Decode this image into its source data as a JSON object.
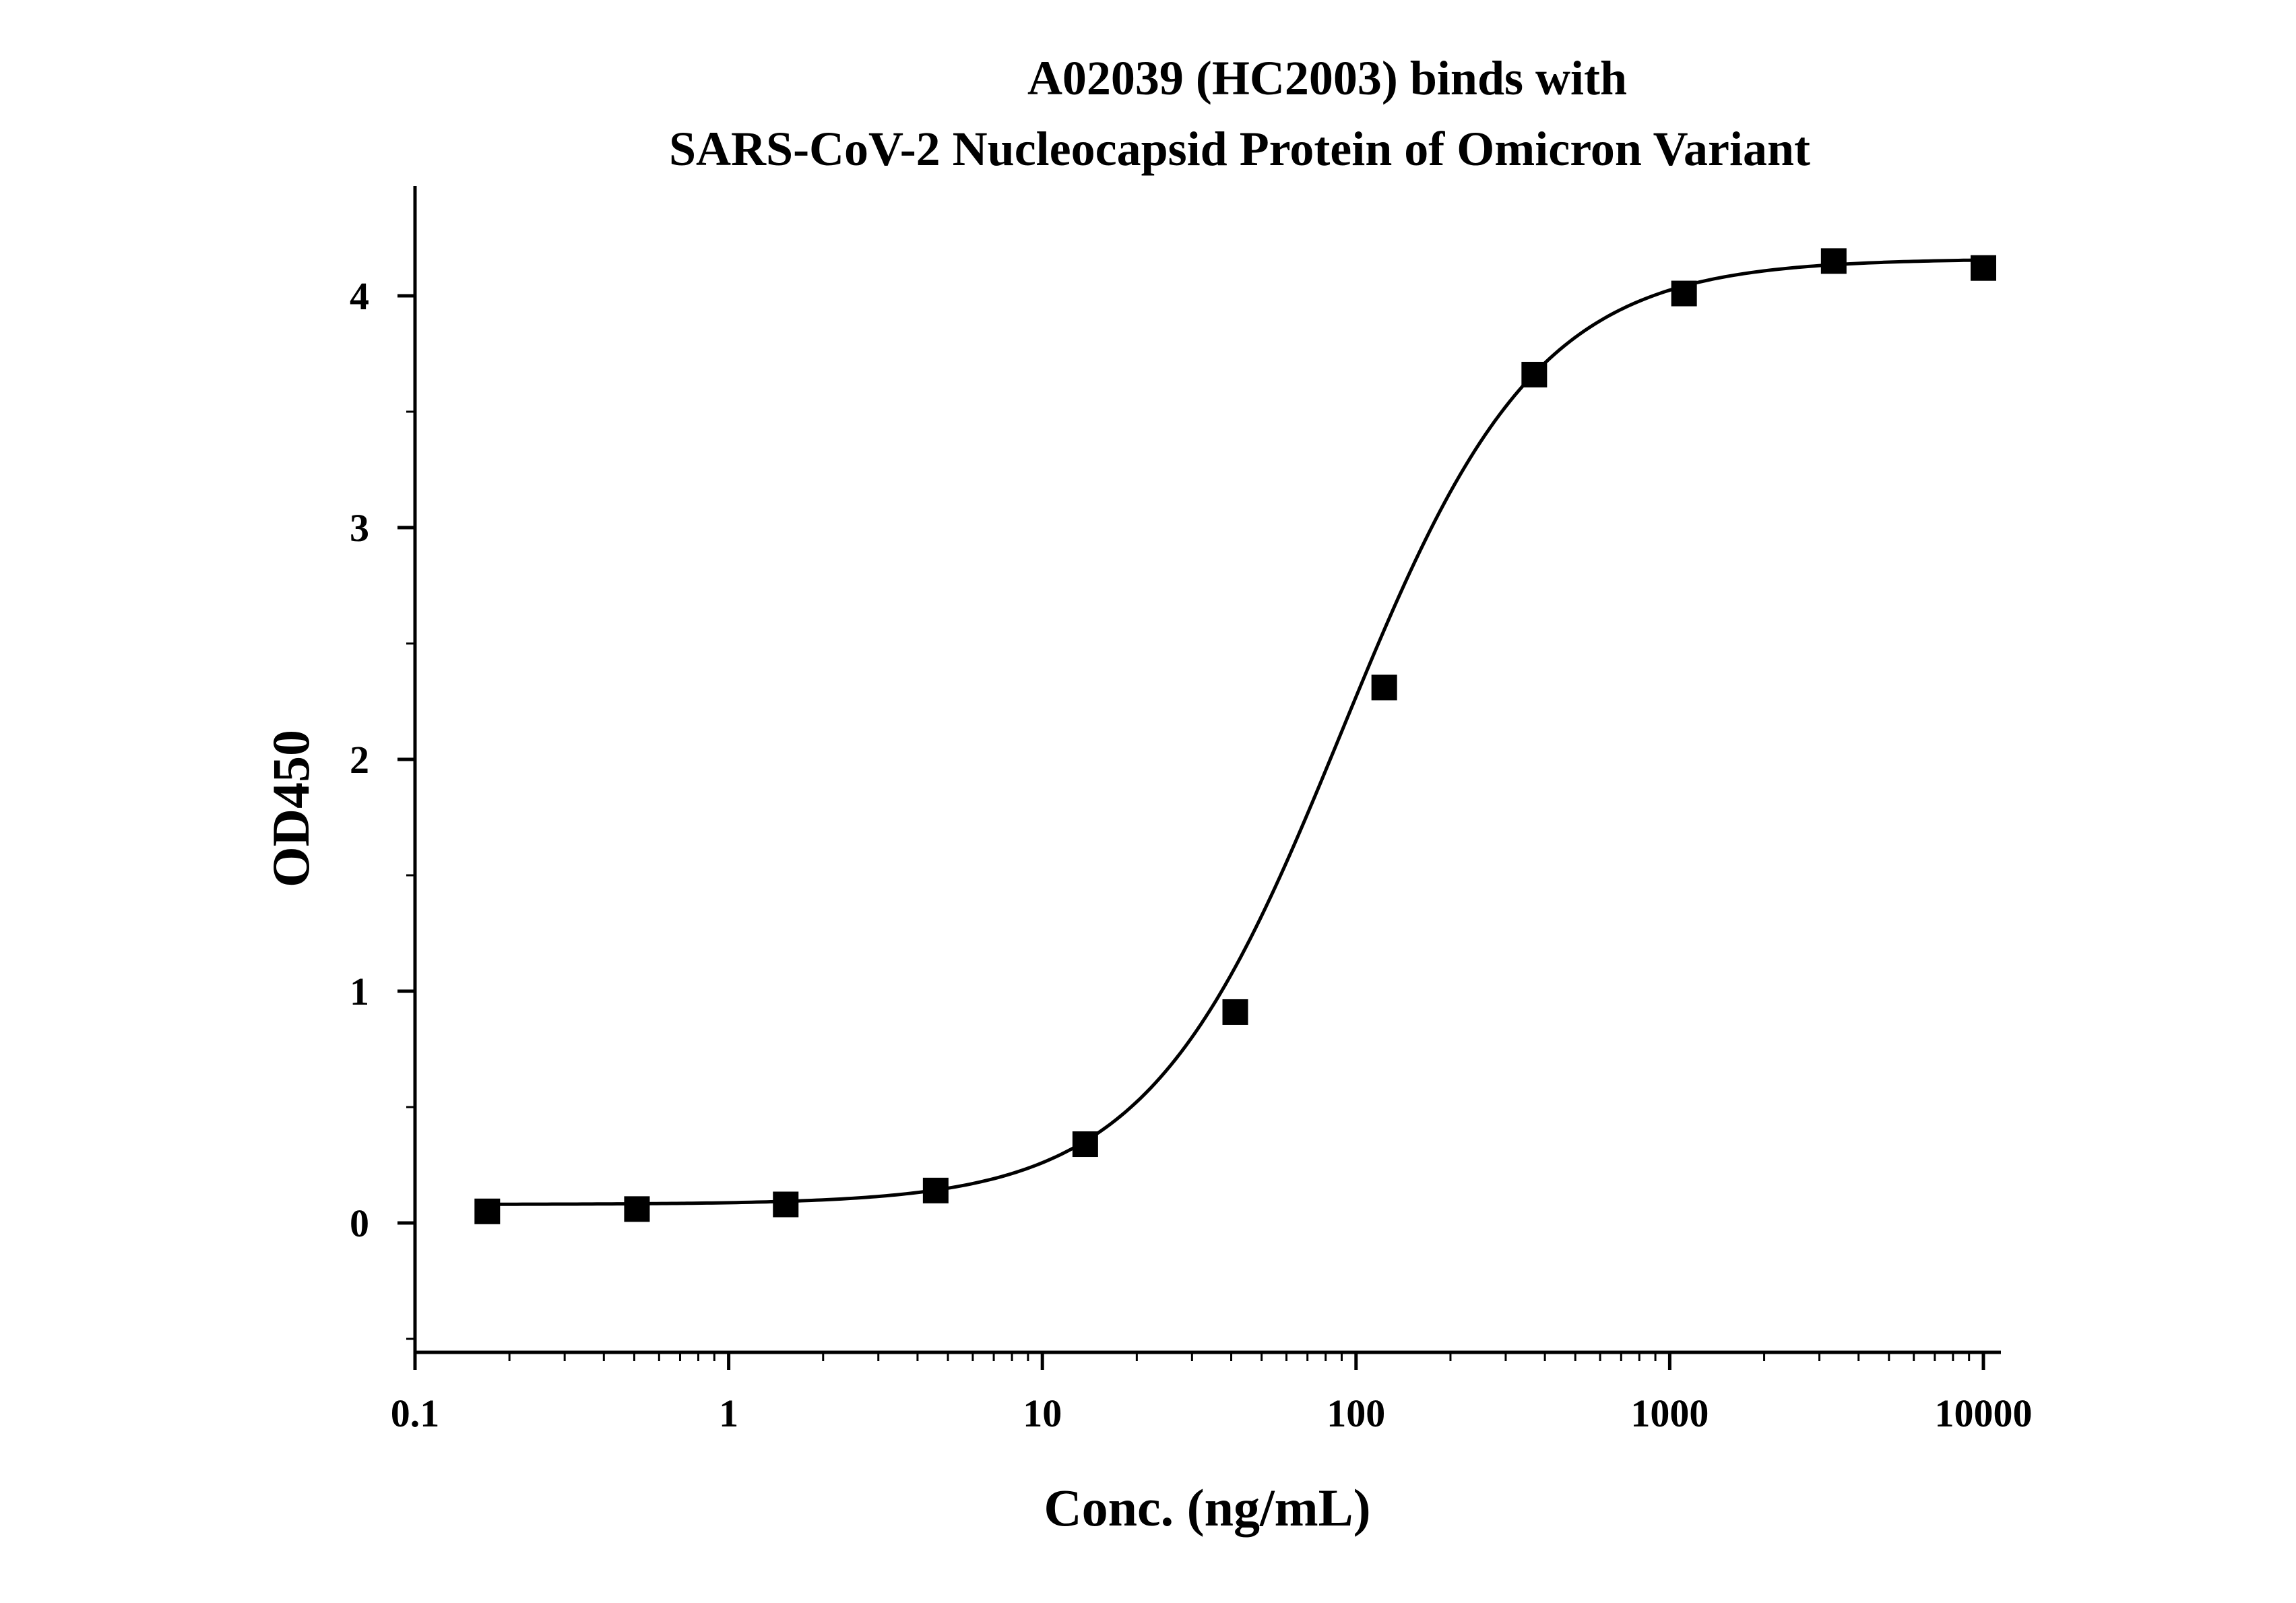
{
  "chart_data": {
    "type": "scatter",
    "title_line1": "A02039 (HC2003) binds with",
    "title_line2": "SARS-CoV-2 Nucleocapsid Protein of Omicron Variant",
    "xlabel": "Conc. (ng/mL)",
    "ylabel": "OD450",
    "x_scale": "log",
    "xlim": [
      0.1,
      10000
    ],
    "ylim": [
      -0.5,
      4.45
    ],
    "x_ticks": [
      {
        "value": 0.1,
        "label": "0.1"
      },
      {
        "value": 1,
        "label": "1"
      },
      {
        "value": 10,
        "label": "10"
      },
      {
        "value": 100,
        "label": "100"
      },
      {
        "value": 1000,
        "label": "1000"
      },
      {
        "value": 10000,
        "label": "10000"
      }
    ],
    "y_ticks": [
      {
        "value": 0,
        "label": "0"
      },
      {
        "value": 1,
        "label": "1"
      },
      {
        "value": 2,
        "label": "2"
      },
      {
        "value": 3,
        "label": "3"
      },
      {
        "value": 4,
        "label": "4"
      }
    ],
    "grid": false,
    "marker": "square",
    "series": [
      {
        "x": [
          0.17,
          0.51,
          1.52,
          4.57,
          13.7,
          41.2,
          123,
          370,
          1111,
          3333,
          10000
        ],
        "y": [
          0.05,
          0.06,
          0.08,
          0.14,
          0.34,
          0.91,
          2.31,
          3.66,
          4.01,
          4.15,
          4.12
        ],
        "fit": {
          "bottom": 0.08,
          "top": 4.16,
          "ec50": 90,
          "hill": 1.4
        }
      }
    ],
    "colors": {
      "marker": "#000000",
      "line": "#000000"
    }
  }
}
